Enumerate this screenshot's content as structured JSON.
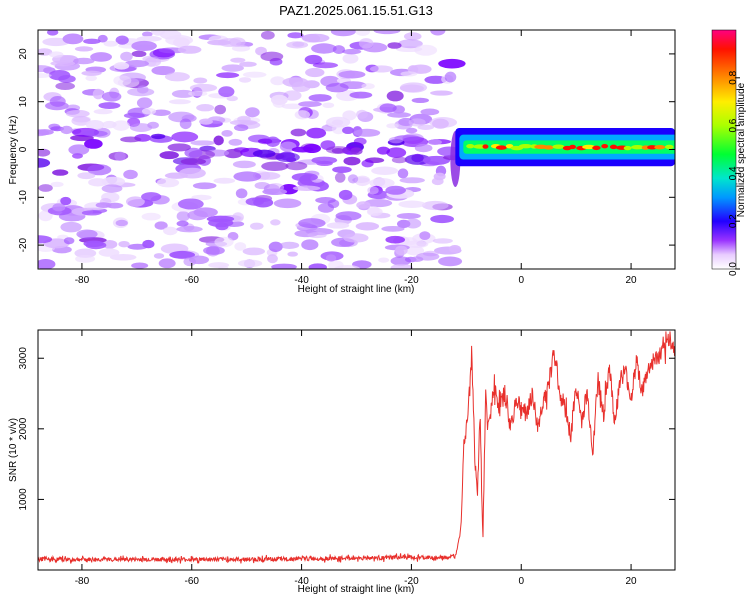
{
  "chart_data": [
    {
      "type": "heatmap",
      "title": "PAZ1.2025.061.15.51.G13",
      "xlabel": "Height of straight line (km)",
      "ylabel": "Frequency (Hz)",
      "xlim": [
        -88,
        28
      ],
      "ylim": [
        -25,
        25
      ],
      "xticks": [
        -80,
        -60,
        -40,
        -20,
        0,
        20
      ],
      "yticks": [
        -20,
        -10,
        0,
        10,
        20
      ],
      "colorbar": {
        "label": "Normalized spectral amplitude",
        "range": [
          0,
          1
        ],
        "ticks": [
          "0.0",
          "0.2",
          "0.4",
          "0.6",
          "0.8"
        ],
        "tick_values": [
          0,
          0.2,
          0.4,
          0.6,
          0.8
        ],
        "colors": [
          "#ffffff",
          "#d9b3ff",
          "#7f00ff",
          "#0000ff",
          "#00bfff",
          "#00ff80",
          "#80ff00",
          "#ffff00",
          "#ff8000",
          "#ff0000",
          "#ff0080"
        ]
      },
      "description_bands": [
        {
          "x_range": [
            -88,
            -12
          ],
          "freq_range": [
            -25,
            25
          ],
          "amplitude": "low (0.05-0.25)"
        },
        {
          "x_range": [
            -12,
            28
          ],
          "freq_center": 0.5,
          "freq_halfwidth": 2,
          "amplitude": "high (0.4-1.0)"
        }
      ]
    },
    {
      "type": "line",
      "xlabel": "Height of straight line (km)",
      "ylabel": "SNR (10 * v/v)",
      "xlim": [
        -88,
        28
      ],
      "ylim": [
        0,
        3400
      ],
      "xticks": [
        -80,
        -60,
        -40,
        -20,
        0,
        20
      ],
      "yticks": [
        1000,
        2000,
        3000
      ],
      "color": "#e8302c",
      "series": [
        {
          "x": [
            -88,
            -80,
            -70,
            -60,
            -50,
            -40,
            -30,
            -20,
            -15,
            -12,
            -11,
            -10.5,
            -10,
            -9,
            -8.5,
            -8,
            -7.5,
            -7,
            -6.5,
            -6,
            -5,
            -4,
            -3,
            -2,
            -1,
            0,
            1,
            2,
            3,
            4,
            5,
            6,
            7,
            8,
            9,
            10,
            11,
            12,
            13,
            14,
            15,
            16,
            17,
            18,
            19,
            20,
            21,
            22,
            23,
            24,
            25,
            26,
            27,
            28
          ],
          "values": [
            150,
            150,
            150,
            150,
            150,
            160,
            170,
            180,
            170,
            190,
            600,
            1800,
            2000,
            3100,
            1700,
            1000,
            2200,
            450,
            2400,
            2000,
            2600,
            2300,
            2500,
            2000,
            2400,
            2300,
            2200,
            2500,
            2000,
            2400,
            2600,
            3150,
            2500,
            2300,
            1900,
            2600,
            2100,
            2500,
            1700,
            2700,
            2200,
            2900,
            2100,
            2700,
            2800,
            2400,
            3000,
            2500,
            2800,
            2950,
            3000,
            3100,
            3300,
            3050
          ]
        }
      ]
    }
  ]
}
